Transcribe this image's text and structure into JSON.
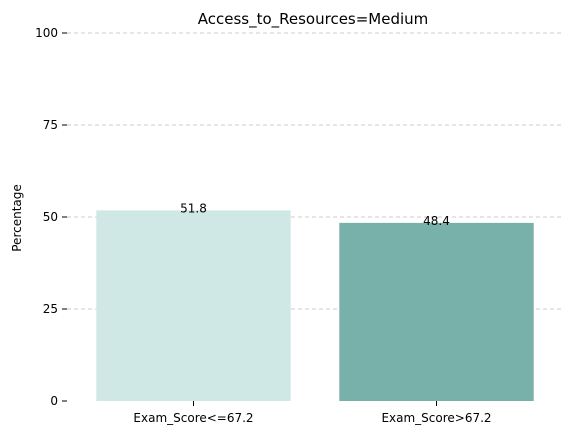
{
  "chart_data": {
    "type": "bar",
    "title": "Access_to_Resources=Medium",
    "xlabel": "",
    "ylabel": "Percentage",
    "categories": [
      "Exam_Score<=67.2",
      "Exam_Score>67.2"
    ],
    "values": [
      51.8,
      48.4
    ],
    "data_labels": [
      "51.8",
      "48.4"
    ],
    "colors": [
      "#cfe8e5",
      "#78b0aa"
    ],
    "ylim": [
      0,
      100
    ],
    "yticks": [
      0,
      25,
      50,
      75,
      100
    ],
    "ytick_labels": [
      "0",
      "25",
      "50",
      "75",
      "100"
    ],
    "grid": true,
    "legend": "none"
  }
}
